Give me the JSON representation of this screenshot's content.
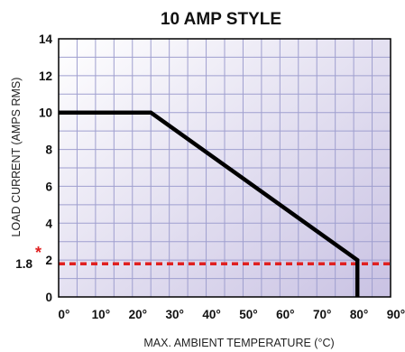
{
  "chart_data": {
    "type": "line",
    "title": "10 AMP STYLE",
    "xlabel": "MAX. AMBIENT TEMPERATURE (°C)",
    "ylabel": "LOAD CURRENT (AMPS RMS)",
    "xlim": [
      0,
      90
    ],
    "ylim": [
      0,
      14
    ],
    "x_ticks": [
      {
        "value": 0,
        "label": "0°"
      },
      {
        "value": 10,
        "label": "10°"
      },
      {
        "value": 20,
        "label": "20°"
      },
      {
        "value": 30,
        "label": "30°"
      },
      {
        "value": 40,
        "label": "40°"
      },
      {
        "value": 50,
        "label": "50°"
      },
      {
        "value": 60,
        "label": "60°"
      },
      {
        "value": 70,
        "label": "70°"
      },
      {
        "value": 80,
        "label": "80°"
      },
      {
        "value": 90,
        "label": "90°"
      }
    ],
    "y_ticks": [
      {
        "value": 0,
        "label": "0"
      },
      {
        "value": 2,
        "label": "2"
      },
      {
        "value": 4,
        "label": "4"
      },
      {
        "value": 6,
        "label": "6"
      },
      {
        "value": 8,
        "label": "8"
      },
      {
        "value": 10,
        "label": "10"
      },
      {
        "value": 12,
        "label": "12"
      },
      {
        "value": 14,
        "label": "14"
      }
    ],
    "x_minor_grid_step": 5,
    "y_minor_grid_step": 1,
    "grid": true,
    "series": [
      {
        "color": "#000000",
        "points": [
          [
            0,
            10
          ],
          [
            25,
            10
          ],
          [
            81,
            2
          ],
          [
            81,
            0
          ]
        ]
      }
    ],
    "reference_lines": [
      {
        "axis": "y",
        "value": 1.8,
        "label": "1.8",
        "marker": "*",
        "color": "#e02020",
        "style": "dashed"
      }
    ]
  },
  "colors": {
    "grid": "#9f9fcf",
    "background_start": "#ffffff",
    "background_end": "#c9c2e3",
    "frame": "#000000",
    "highlight": "#e02020"
  }
}
